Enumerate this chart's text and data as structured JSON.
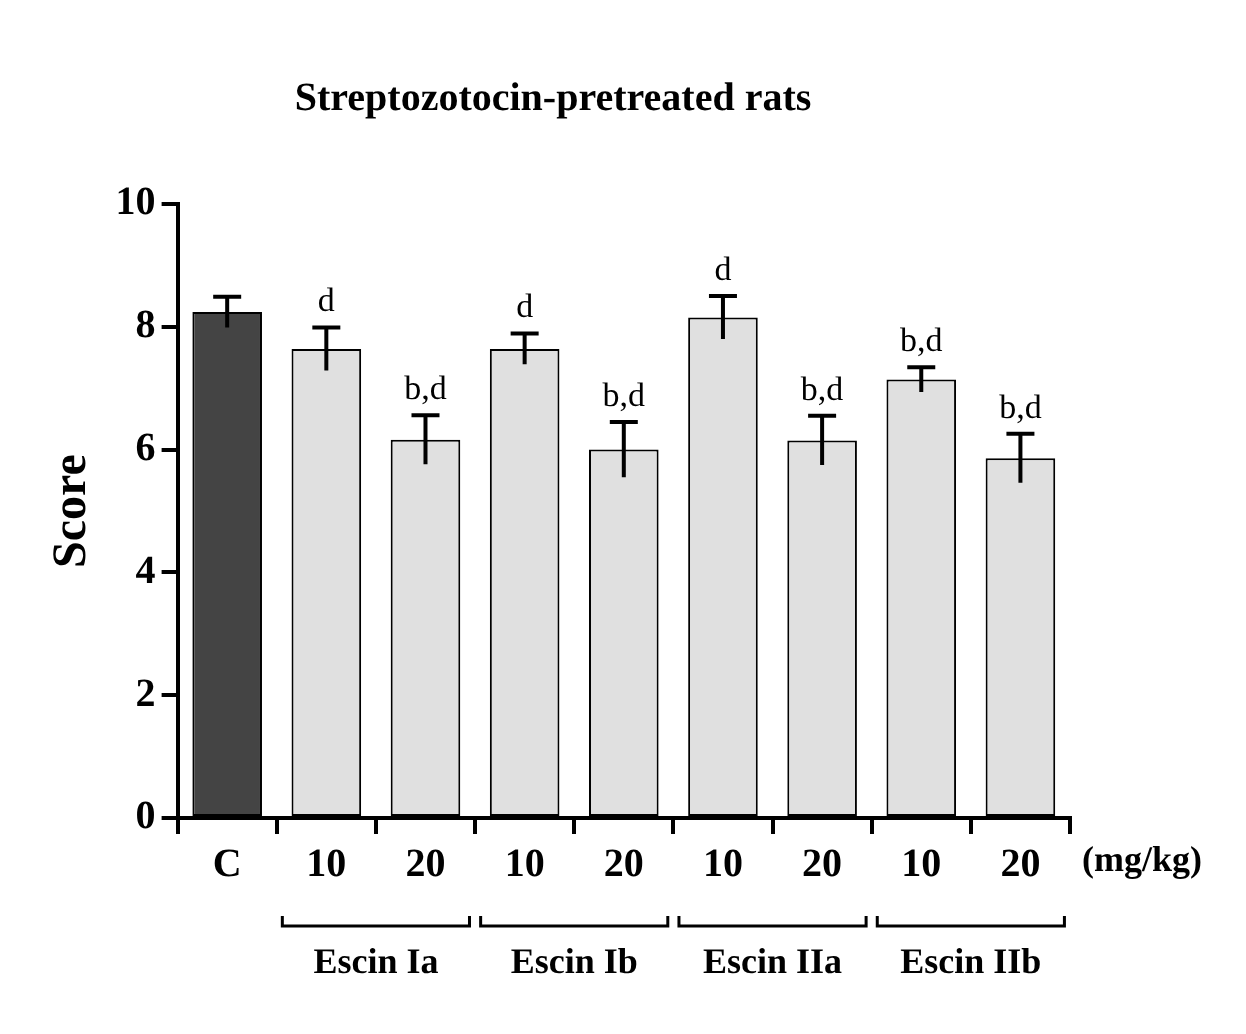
{
  "chart_data": {
    "type": "bar",
    "title": "Streptozotocin-pretreated rats",
    "ylabel": "Score",
    "xlabel": "(mg/kg)",
    "categories": [
      "C",
      "10",
      "20",
      "10",
      "20",
      "10",
      "20",
      "10",
      "20"
    ],
    "values": [
      8.24,
      7.64,
      6.16,
      7.64,
      6.0,
      8.15,
      6.15,
      7.14,
      5.86
    ],
    "errors": [
      0.25,
      0.35,
      0.4,
      0.25,
      0.45,
      0.35,
      0.4,
      0.2,
      0.4
    ],
    "value_labels": [
      null,
      "d",
      "b,d",
      "d",
      "b,d",
      "d",
      "b,d",
      "b,d",
      "b,d"
    ],
    "colors": [
      "#444444",
      "#e0e0e0",
      "#e0e0e0",
      "#e0e0e0",
      "#e0e0e0",
      "#e0e0e0",
      "#e0e0e0",
      "#e0e0e0",
      "#e0e0e0"
    ],
    "annotations": [
      "Escin Ia",
      "Escin Ib",
      "Escin IIa",
      "Escin IIb"
    ],
    "ylim": [
      0,
      10
    ],
    "yticks": [
      0,
      2,
      4,
      6,
      8,
      10
    ],
    "grid": false,
    "legend": false
  }
}
